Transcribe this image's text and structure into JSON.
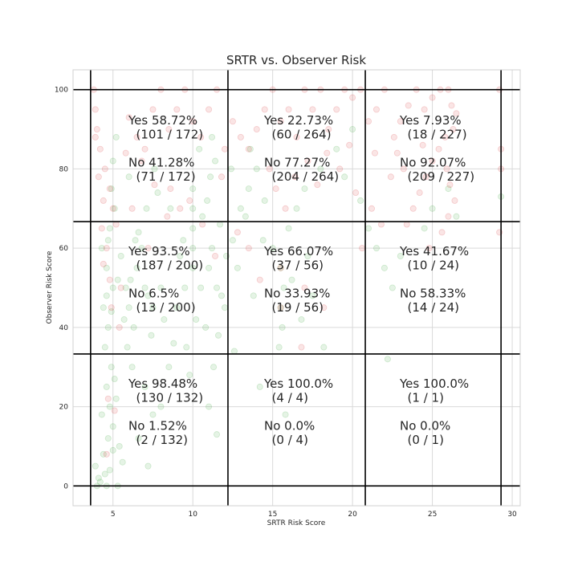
{
  "chart_data": {
    "type": "scatter",
    "title": "SRTR vs. Observer Risk",
    "xlabel": "SRTR Risk Score",
    "ylabel": "Observer Risk Score",
    "xlim": [
      2.5,
      30.5
    ],
    "ylim": [
      -5,
      105
    ],
    "xticks": [
      5,
      10,
      15,
      20,
      25,
      30
    ],
    "yticks": [
      0,
      20,
      40,
      60,
      80,
      100
    ],
    "grid": true,
    "colors": {
      "yes": "#2ca02c",
      "no": "#d62728",
      "divider": "#000000",
      "grid": "#d9d9d9"
    },
    "point_alpha": 0.12,
    "dividers": {
      "x": [
        3.6,
        12.2,
        20.8,
        29.3
      ],
      "y": [
        0,
        33.3,
        66.7,
        100
      ]
    },
    "cells": [
      {
        "col": 0,
        "row": 0,
        "lines": [
          "Yes 58.72%",
          "  (101 / 172)",
          "",
          "No 41.28%",
          "  (71 / 172)"
        ]
      },
      {
        "col": 1,
        "row": 0,
        "lines": [
          "Yes 22.73%",
          "  (60 / 264)",
          "",
          "No 77.27%",
          "  (204 / 264)"
        ]
      },
      {
        "col": 2,
        "row": 0,
        "lines": [
          "Yes 7.93%",
          "  (18 / 227)",
          "",
          "No 92.07%",
          "  (209 / 227)"
        ]
      },
      {
        "col": 0,
        "row": 1,
        "lines": [
          "Yes 93.5%",
          "  (187 / 200)",
          "",
          "No 6.5%",
          "  (13 / 200)"
        ]
      },
      {
        "col": 1,
        "row": 1,
        "lines": [
          "Yes 66.07%",
          "  (37 / 56)",
          "",
          "No 33.93%",
          "  (19 / 56)"
        ]
      },
      {
        "col": 2,
        "row": 1,
        "lines": [
          "Yes 41.67%",
          "  (10 / 24)",
          "",
          "No 58.33%",
          "  (14 / 24)"
        ]
      },
      {
        "col": 0,
        "row": 2,
        "lines": [
          "Yes 98.48%",
          "  (130 / 132)",
          "",
          "No 1.52%",
          "  (2 / 132)"
        ]
      },
      {
        "col": 1,
        "row": 2,
        "lines": [
          "Yes 100.0%",
          "  (4 / 4)",
          "",
          "No 0.0%",
          "  (0 / 4)"
        ]
      },
      {
        "col": 2,
        "row": 2,
        "lines": [
          "Yes 100.0%",
          "  (1 / 1)",
          "",
          "No 0.0%",
          "  (0 / 1)"
        ]
      }
    ],
    "series": [
      {
        "color": "#2ca02c",
        "points": [
          [
            4.0,
            0
          ],
          [
            4.2,
            1
          ],
          [
            4.5,
            3
          ],
          [
            3.9,
            5
          ],
          [
            4.4,
            8
          ],
          [
            4.7,
            12
          ],
          [
            5.0,
            15
          ],
          [
            4.3,
            18
          ],
          [
            4.8,
            20
          ],
          [
            5.2,
            22
          ],
          [
            4.6,
            25
          ],
          [
            5.1,
            27
          ],
          [
            4.9,
            30
          ],
          [
            5.4,
            10
          ],
          [
            5.6,
            6
          ],
          [
            4.1,
            2
          ],
          [
            4.6,
            0
          ],
          [
            5.3,
            0
          ],
          [
            4.8,
            4
          ],
          [
            5.0,
            9
          ],
          [
            4.5,
            35
          ],
          [
            4.7,
            40
          ],
          [
            4.9,
            44
          ],
          [
            5.0,
            50
          ],
          [
            4.6,
            55
          ],
          [
            4.3,
            60
          ],
          [
            4.8,
            65
          ],
          [
            5.1,
            70
          ],
          [
            4.9,
            75
          ],
          [
            5.0,
            82
          ],
          [
            5.2,
            88
          ],
          [
            4.4,
            45
          ],
          [
            4.6,
            48
          ],
          [
            5.3,
            52
          ],
          [
            5.5,
            58
          ],
          [
            4.7,
            62
          ],
          [
            5.8,
            50
          ],
          [
            6.0,
            45
          ],
          [
            6.3,
            40
          ],
          [
            6.5,
            55
          ],
          [
            7.0,
            50
          ],
          [
            7.2,
            48
          ],
          [
            7.5,
            45
          ],
          [
            6.8,
            60
          ],
          [
            7.4,
            38
          ],
          [
            8.0,
            50
          ],
          [
            8.2,
            42
          ],
          [
            6.2,
            30
          ],
          [
            7.0,
            25
          ],
          [
            7.5,
            18
          ],
          [
            6.6,
            12
          ],
          [
            7.2,
            5
          ],
          [
            8.0,
            20
          ],
          [
            5.9,
            35
          ],
          [
            6.1,
            52
          ],
          [
            6.6,
            64
          ],
          [
            7.1,
            70
          ],
          [
            6.0,
            78
          ],
          [
            6.4,
            62
          ],
          [
            5.7,
            42
          ],
          [
            9.0,
            45
          ],
          [
            9.5,
            50
          ],
          [
            10.0,
            55
          ],
          [
            10.0,
            60
          ],
          [
            10.0,
            65
          ],
          [
            10.0,
            70
          ],
          [
            10.0,
            75
          ],
          [
            10.5,
            50
          ],
          [
            11.0,
            55
          ],
          [
            11.2,
            60
          ],
          [
            11.5,
            50
          ],
          [
            11.8,
            48
          ],
          [
            12.0,
            45
          ],
          [
            11.6,
            38
          ],
          [
            11.3,
            30
          ],
          [
            11.0,
            20
          ],
          [
            11.5,
            13
          ],
          [
            10.8,
            40
          ],
          [
            10.2,
            42
          ],
          [
            9.6,
            35
          ],
          [
            10.6,
            68
          ],
          [
            10.9,
            72
          ],
          [
            11.1,
            78
          ],
          [
            11.4,
            82
          ],
          [
            11.7,
            66
          ],
          [
            12.1,
            58
          ],
          [
            12.5,
            62
          ],
          [
            13.0,
            70
          ],
          [
            13.5,
            75
          ],
          [
            14.0,
            80
          ],
          [
            12.8,
            55
          ],
          [
            13.3,
            68
          ],
          [
            14.5,
            72
          ],
          [
            15.0,
            60
          ],
          [
            15.5,
            55
          ],
          [
            15.7,
            50
          ],
          [
            15.5,
            45
          ],
          [
            15.6,
            40
          ],
          [
            15.4,
            35
          ],
          [
            16.0,
            65
          ],
          [
            16.5,
            70
          ],
          [
            17.0,
            75
          ],
          [
            18.0,
            80
          ],
          [
            19.0,
            85
          ],
          [
            20.0,
            90
          ],
          [
            19.5,
            78
          ],
          [
            20.5,
            72
          ],
          [
            21.0,
            65
          ],
          [
            21.5,
            60
          ],
          [
            22.0,
            55
          ],
          [
            22.5,
            50
          ],
          [
            23.0,
            58
          ],
          [
            22.2,
            32
          ],
          [
            24.5,
            65
          ],
          [
            25.0,
            70
          ],
          [
            26.0,
            75
          ],
          [
            26.5,
            68
          ],
          [
            29.3,
            73
          ],
          [
            14.2,
            25
          ],
          [
            15.8,
            18
          ],
          [
            16.8,
            42
          ],
          [
            17.5,
            48
          ],
          [
            18.2,
            35
          ],
          [
            13.8,
            48
          ],
          [
            12.6,
            34
          ],
          [
            9.8,
            28
          ],
          [
            8.5,
            30
          ],
          [
            8.8,
            36
          ],
          [
            9.2,
            58
          ],
          [
            9.4,
            62
          ],
          [
            8.6,
            70
          ],
          [
            7.8,
            74
          ],
          [
            7.6,
            80
          ],
          [
            10.4,
            85
          ],
          [
            11.2,
            88
          ],
          [
            12.4,
            80
          ],
          [
            13.6,
            85
          ],
          [
            14.4,
            62
          ],
          [
            16.2,
            52
          ],
          [
            17.2,
            58
          ]
        ]
      },
      {
        "color": "#d62728",
        "points": [
          [
            3.8,
            100
          ],
          [
            3.9,
            95
          ],
          [
            4.0,
            90
          ],
          [
            4.2,
            85
          ],
          [
            4.5,
            80
          ],
          [
            4.8,
            75
          ],
          [
            5.0,
            70
          ],
          [
            4.3,
            65
          ],
          [
            4.6,
            60
          ],
          [
            3.9,
            88
          ],
          [
            4.1,
            78
          ],
          [
            4.4,
            72
          ],
          [
            5.2,
            66
          ],
          [
            5.5,
            50
          ],
          [
            4.9,
            45
          ],
          [
            4.7,
            22
          ],
          [
            5.1,
            19
          ],
          [
            4.6,
            8
          ],
          [
            5.4,
            40
          ],
          [
            6.0,
            93
          ],
          [
            6.5,
            88
          ],
          [
            7.0,
            85
          ],
          [
            7.5,
            95
          ],
          [
            8.0,
            100
          ],
          [
            8.5,
            90
          ],
          [
            9.0,
            95
          ],
          [
            9.5,
            100
          ],
          [
            10.0,
            92
          ],
          [
            10.5,
            88
          ],
          [
            11.0,
            95
          ],
          [
            11.5,
            100
          ],
          [
            12.0,
            85
          ],
          [
            7.2,
            60
          ],
          [
            8.6,
            75
          ],
          [
            9.2,
            70
          ],
          [
            11.8,
            78
          ],
          [
            12.5,
            92
          ],
          [
            13.0,
            88
          ],
          [
            13.5,
            85
          ],
          [
            14.0,
            90
          ],
          [
            14.5,
            95
          ],
          [
            15.0,
            100
          ],
          [
            15.5,
            92
          ],
          [
            16.0,
            95
          ],
          [
            16.5,
            88
          ],
          [
            17.0,
            100
          ],
          [
            17.5,
            95
          ],
          [
            18.0,
            100
          ],
          [
            18.5,
            90
          ],
          [
            19.0,
            95
          ],
          [
            19.5,
            100
          ],
          [
            20.0,
            98
          ],
          [
            20.5,
            100
          ],
          [
            21.0,
            92
          ],
          [
            21.5,
            95
          ],
          [
            22.0,
            100
          ],
          [
            14.8,
            80
          ],
          [
            15.2,
            75
          ],
          [
            15.8,
            70
          ],
          [
            16.4,
            78
          ],
          [
            17.2,
            82
          ],
          [
            17.8,
            76
          ],
          [
            18.4,
            84
          ],
          [
            19.2,
            80
          ],
          [
            19.8,
            86
          ],
          [
            20.2,
            74
          ],
          [
            21.2,
            70
          ],
          [
            21.8,
            66
          ],
          [
            22.4,
            78
          ],
          [
            22.8,
            84
          ],
          [
            23.0,
            92
          ],
          [
            23.5,
            96
          ],
          [
            24.0,
            100
          ],
          [
            24.5,
            95
          ],
          [
            25.0,
            98
          ],
          [
            25.5,
            100
          ],
          [
            26.0,
            100
          ],
          [
            26.2,
            96
          ],
          [
            26.5,
            94
          ],
          [
            26.3,
            90
          ],
          [
            25.8,
            88
          ],
          [
            25.4,
            85
          ],
          [
            25.0,
            82
          ],
          [
            24.6,
            78
          ],
          [
            24.2,
            74
          ],
          [
            23.8,
            70
          ],
          [
            23.4,
            66
          ],
          [
            25.9,
            80
          ],
          [
            26.1,
            76
          ],
          [
            26.4,
            72
          ],
          [
            26.0,
            68
          ],
          [
            25.6,
            64
          ],
          [
            24.8,
            60
          ],
          [
            29.2,
            100
          ],
          [
            29.3,
            85
          ],
          [
            29.3,
            80
          ],
          [
            29.2,
            64
          ],
          [
            15.5,
            55
          ],
          [
            17.0,
            50
          ],
          [
            18.2,
            45
          ],
          [
            16.8,
            35
          ],
          [
            15.5,
            45
          ],
          [
            14.2,
            52
          ],
          [
            13.5,
            60
          ],
          [
            12.8,
            64
          ],
          [
            11.4,
            58
          ],
          [
            10.6,
            66
          ],
          [
            9.8,
            72
          ],
          [
            8.4,
            68
          ],
          [
            7.6,
            76
          ],
          [
            6.8,
            82
          ],
          [
            6.2,
            70
          ],
          [
            5.8,
            84
          ],
          [
            4.4,
            56
          ],
          [
            4.8,
            52
          ],
          [
            20.6,
            60
          ],
          [
            21.4,
            84
          ],
          [
            22.6,
            88
          ],
          [
            23.2,
            80
          ],
          [
            24.4,
            86
          ]
        ]
      }
    ]
  }
}
